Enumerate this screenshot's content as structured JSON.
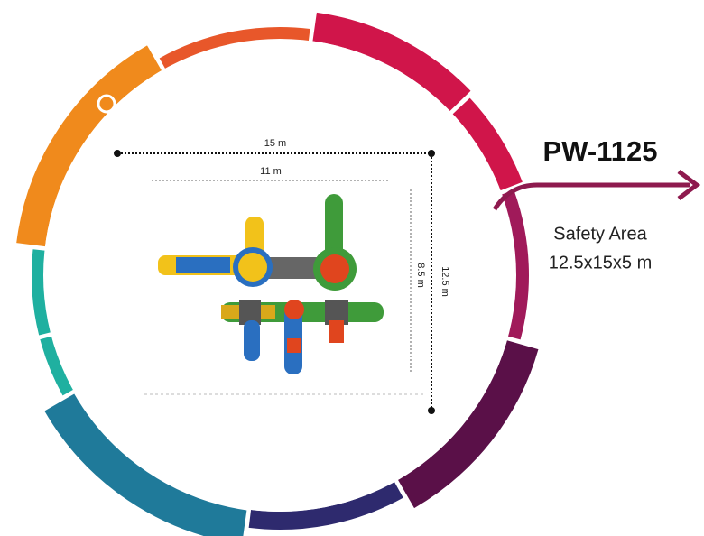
{
  "dimensions": {
    "width": "15 m",
    "inner_width": "11 m",
    "depth": "12.5 m",
    "inner_depth": "8.5 m"
  },
  "product": {
    "code": "PW-1125",
    "label": "Safety Area",
    "size": "12.5x15x5 m"
  }
}
